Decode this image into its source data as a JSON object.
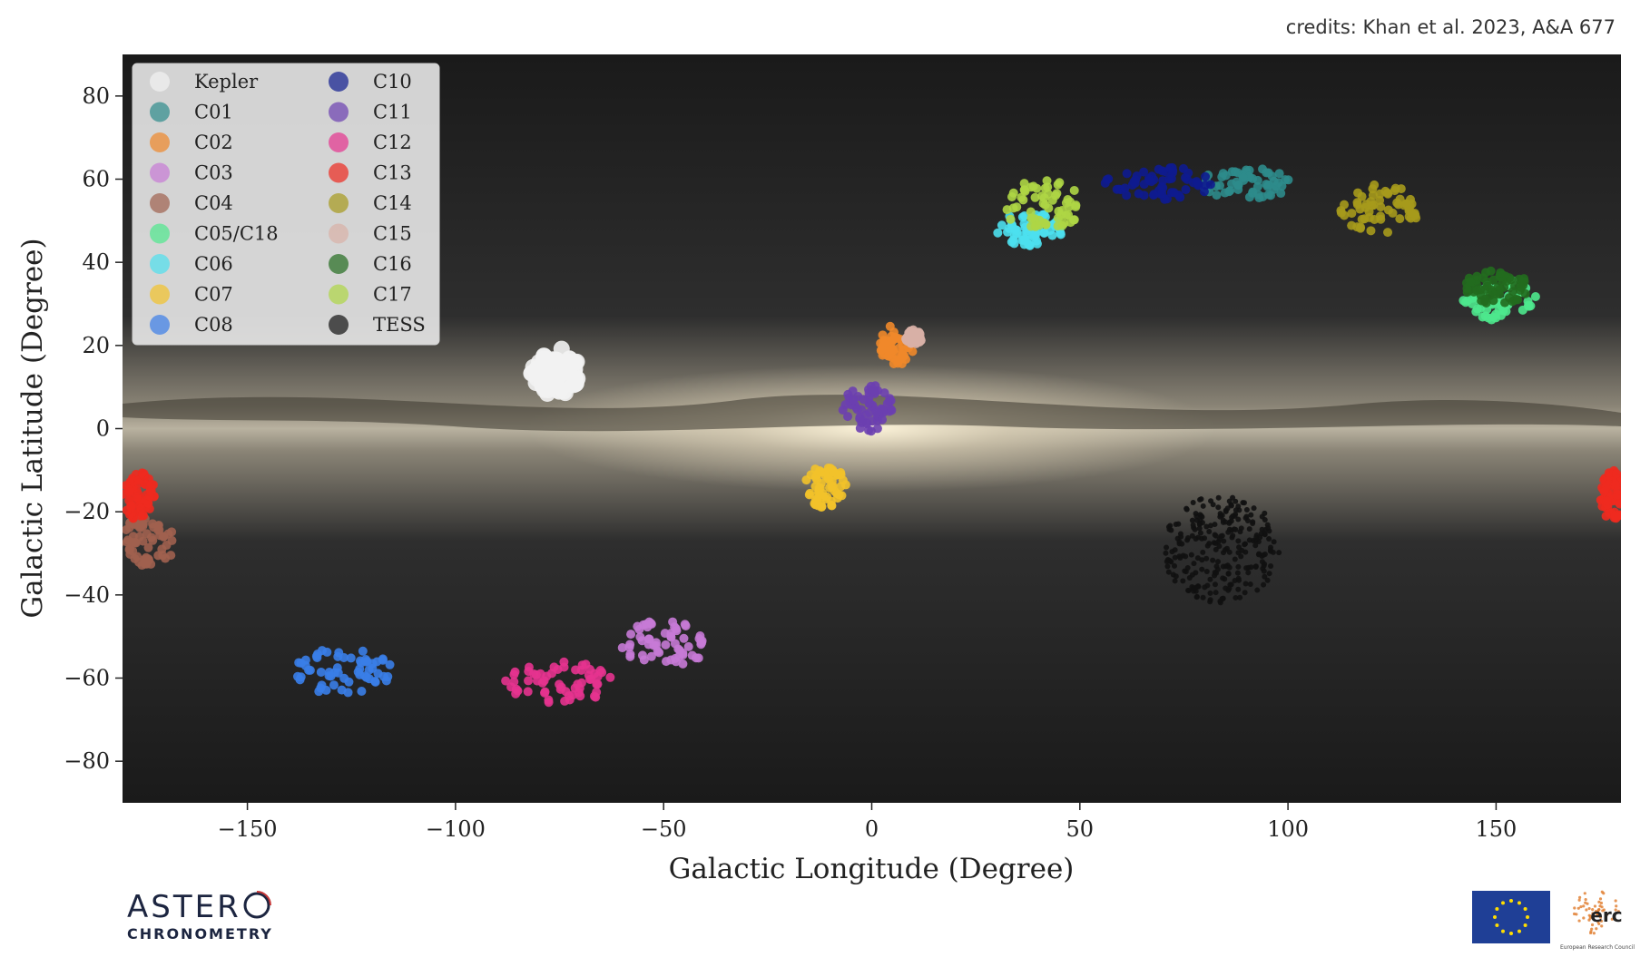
{
  "credits": "credits: Khan et al. 2023, A&A 677",
  "logos": {
    "astero_line1": "ASTER",
    "astero_line2": "CHRONOMETRY",
    "erc_text": "erc",
    "erc_caption": "European Research Council"
  },
  "chart_data": {
    "type": "scatter",
    "xlabel": "Galactic Longitude (Degree)",
    "ylabel": "Galactic Latitude (Degree)",
    "xlim": [
      -180,
      180
    ],
    "ylim": [
      -90,
      90
    ],
    "xticks": [
      -150,
      -100,
      -50,
      0,
      50,
      100,
      150
    ],
    "yticks": [
      80,
      60,
      40,
      20,
      0,
      -20,
      -40,
      -60,
      -80
    ],
    "background": "Milky Way all-sky image (dark sky, bright galactic plane)",
    "legend_position": "top-left",
    "legend_columns": 2,
    "series": [
      {
        "name": "Kepler",
        "color": "#f2f2f2",
        "clusters": [
          [
            -76,
            14,
            6,
            6
          ]
        ]
      },
      {
        "name": "C01",
        "color": "#2e8b8b",
        "clusters": [
          [
            90,
            59,
            11,
            4
          ]
        ]
      },
      {
        "name": "C02",
        "color": "#f0882a",
        "clusters": [
          [
            6,
            20,
            4,
            5
          ]
        ]
      },
      {
        "name": "C03",
        "color": "#c77ad6",
        "clusters": [
          [
            -50,
            -52,
            10,
            6
          ]
        ]
      },
      {
        "name": "C04",
        "color": "#a0614f",
        "clusters": [
          [
            -174,
            -27,
            7,
            6
          ]
        ]
      },
      {
        "name": "C05/C18",
        "color": "#4ee88d",
        "clusters": [
          [
            151,
            31,
            9,
            5
          ]
        ]
      },
      {
        "name": "C06",
        "color": "#4de0ee",
        "clusters": [
          [
            38,
            48,
            8,
            4
          ]
        ]
      },
      {
        "name": "C07",
        "color": "#f2c22a",
        "clusters": [
          [
            -11,
            -14,
            5,
            5
          ]
        ]
      },
      {
        "name": "C08",
        "color": "#3a7ee8",
        "clusters": [
          [
            -127,
            -58,
            12,
            6
          ]
        ]
      },
      {
        "name": "C10",
        "color": "#0e1b8f",
        "clusters": [
          [
            69,
            59,
            13,
            4
          ]
        ]
      },
      {
        "name": "C11",
        "color": "#6b3fb0",
        "clusters": [
          [
            -1,
            5,
            6,
            6
          ]
        ]
      },
      {
        "name": "C12",
        "color": "#e6338f",
        "clusters": [
          [
            -75,
            -61,
            13,
            5
          ]
        ]
      },
      {
        "name": "C13",
        "color": "#ee2a1f",
        "clusters": [
          [
            -176,
            -16,
            4,
            6
          ],
          [
            178,
            -16,
            3,
            6
          ]
        ]
      },
      {
        "name": "C14",
        "color": "#a69a1c",
        "clusters": [
          [
            122,
            53,
            10,
            6
          ]
        ]
      },
      {
        "name": "C15",
        "color": "#d8b0a6",
        "clusters": [
          [
            10,
            22,
            2,
            2
          ]
        ]
      },
      {
        "name": "C16",
        "color": "#226b1e",
        "clusters": [
          [
            150,
            34,
            8,
            4
          ]
        ]
      },
      {
        "name": "C17",
        "color": "#aed645",
        "clusters": [
          [
            41,
            54,
            10,
            6
          ]
        ]
      },
      {
        "name": "TESS",
        "color": "#111111",
        "clusters": [
          [
            84,
            -29,
            14,
            13
          ]
        ]
      }
    ]
  }
}
